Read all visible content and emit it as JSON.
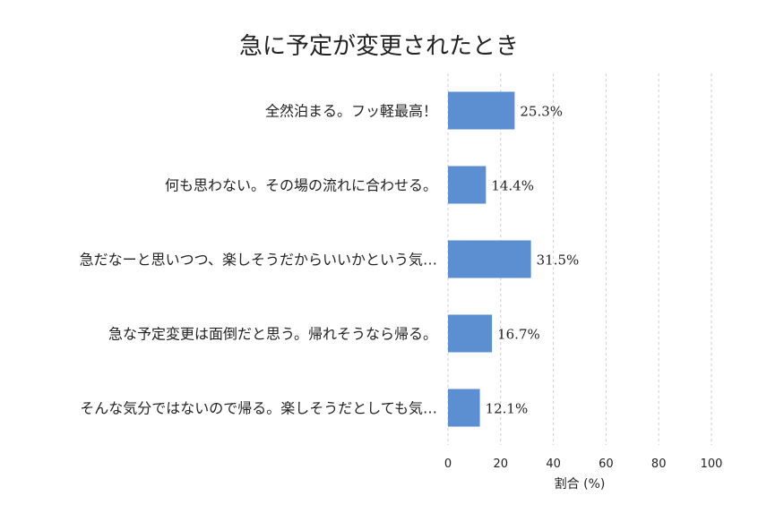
{
  "chart_data": {
    "type": "bar",
    "orientation": "horizontal",
    "title": "急に予定が変更されたとき",
    "categories": [
      "全然泊まる。フッ軽最高！",
      "何も思わない。その場の流れに合わせる。",
      "急だなーと思いつつ、楽しそうだからいいかという気…",
      "急な予定変更は面倒だと思う。帰れそうなら帰る。",
      "そんな気分ではないので帰る。楽しそうだとしても気…"
    ],
    "values": [
      25.3,
      14.4,
      31.5,
      16.7,
      12.1
    ],
    "value_labels": [
      "25.3%",
      "14.4%",
      "31.5%",
      "16.7%",
      "12.1%"
    ],
    "xlabel": "割合 (%)",
    "ylabel": "",
    "xlim": [
      0,
      100
    ],
    "xticks": [
      0,
      20,
      40,
      60,
      80,
      100
    ],
    "grid": "x-dashed",
    "bar_color": "#5b8fd1"
  }
}
